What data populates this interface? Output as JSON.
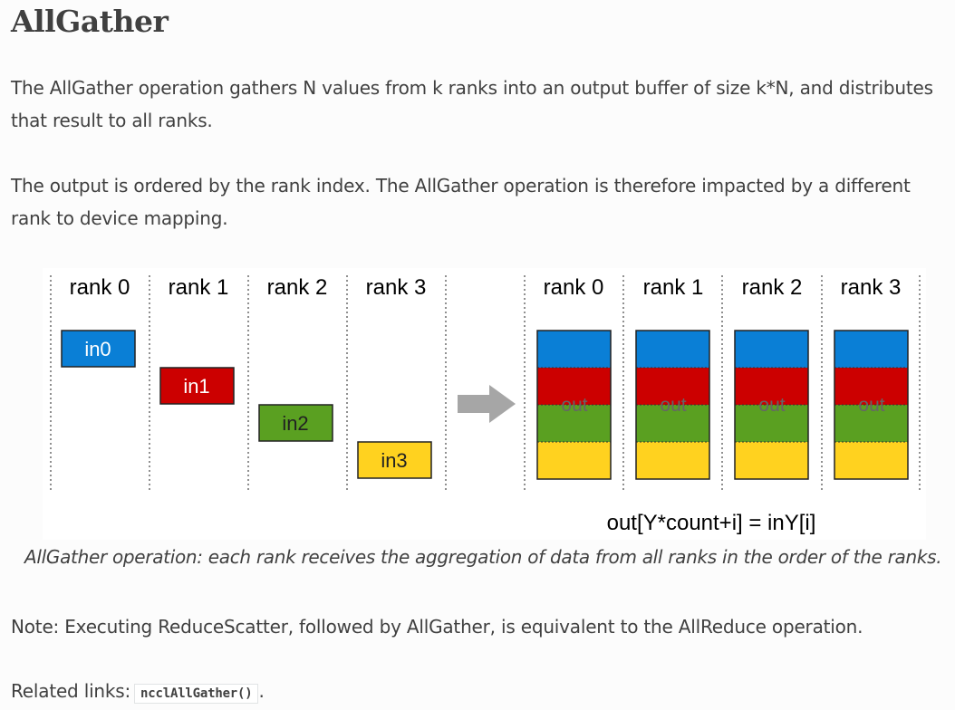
{
  "page": {
    "title": "AllGather",
    "para1": "The AllGather operation gathers N values from k ranks into an output buffer of size k*N, and distributes that result to all ranks.",
    "para2": "The output is ordered by the rank index. The AllGather operation is therefore impacted by a different rank to device mapping.",
    "caption": "AllGather operation: each rank receives the aggregation of data from all ranks in the order of the ranks.",
    "note": "Note: Executing ReduceScatter, followed by AllGather, is equivalent to the AllReduce operation.",
    "related_label": "Related links:",
    "related_link": "ncclAllGather()",
    "related_end": "."
  },
  "figure": {
    "left_ranks": [
      "rank 0",
      "rank 1",
      "rank 2",
      "rank 3"
    ],
    "right_ranks": [
      "rank 0",
      "rank 1",
      "rank 2",
      "rank 3"
    ],
    "inputs": [
      "in0",
      "in1",
      "in2",
      "in3"
    ],
    "out_label": "out",
    "formula": "out[Y*count+i] = inY[i]",
    "colors": {
      "blue": "#0a7fd6",
      "red": "#cc0000",
      "green": "#5aa021",
      "yellow": "#ffd21f",
      "arrow": "#a6a6a6"
    }
  }
}
